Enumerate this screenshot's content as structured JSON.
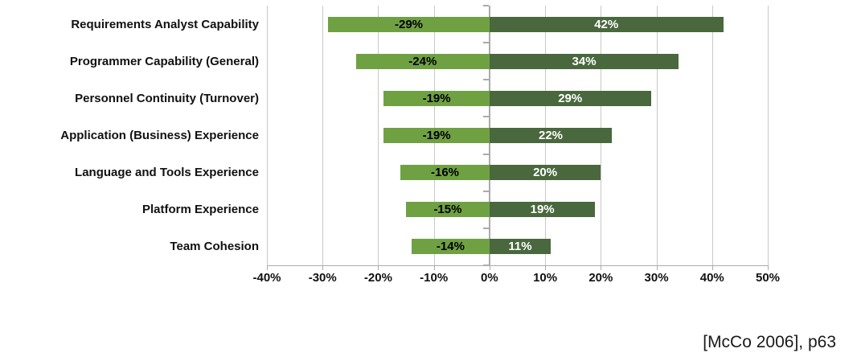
{
  "chart_data": {
    "type": "bar",
    "orientation": "horizontal",
    "title": "",
    "xlabel": "",
    "ylabel": "",
    "grid": true,
    "legend": false,
    "categories": [
      "Requirements Analyst Capability",
      "Programmer Capability (General)",
      "Personnel Continuity (Turnover)",
      "Application (Business) Experience",
      "Language and Tools Experience",
      "Platform Experience",
      "Team Cohesion"
    ],
    "series": [
      {
        "name": "negative",
        "values": [
          -29,
          -24,
          -19,
          -19,
          -16,
          -15,
          -14
        ],
        "labels": [
          "-29%",
          "-24%",
          "-19%",
          "-19%",
          "-16%",
          "-15%",
          "-14%"
        ],
        "color": "#6FA143",
        "label_color": "#000000"
      },
      {
        "name": "positive",
        "values": [
          42,
          34,
          29,
          22,
          20,
          19,
          11
        ],
        "labels": [
          "42%",
          "34%",
          "29%",
          "22%",
          "20%",
          "19%",
          "11%"
        ],
        "color": "#49683D",
        "label_color": "#FFFFFF"
      }
    ],
    "x_axis": {
      "min": -40,
      "max": 50,
      "ticks": [
        -40,
        -30,
        -20,
        -10,
        0,
        10,
        20,
        30,
        40,
        50
      ],
      "tick_labels": [
        "-40%",
        "-30%",
        "-20%",
        "-10%",
        "0%",
        "10%",
        "20%",
        "30%",
        "40%",
        "50%"
      ]
    },
    "colors": {
      "gridline": "#C8C8C8",
      "zero_line": "#ABABAB",
      "axis": "#ABABAB",
      "label_text": "#111111"
    }
  },
  "citation": {
    "text": "[McCo 2006], p63"
  }
}
